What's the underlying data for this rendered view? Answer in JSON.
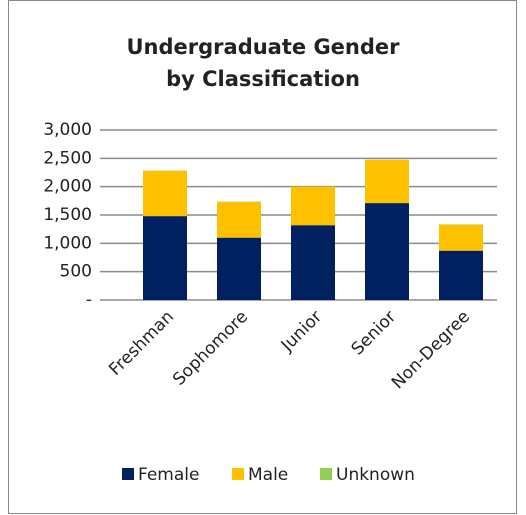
{
  "chart_data": {
    "type": "stacked_bar",
    "title": [
      "Undergraduate Gender",
      "by Classification"
    ],
    "categories": [
      "Freshman",
      "Sophomore",
      "Junior",
      "Senior",
      "Non-Degree"
    ],
    "series": [
      {
        "name": "Female",
        "color": "#002060",
        "values": [
          1480,
          1100,
          1320,
          1710,
          870
        ]
      },
      {
        "name": "Male",
        "color": "#ffc000",
        "values": [
          800,
          630,
          680,
          760,
          460
        ]
      },
      {
        "name": "Unknown",
        "color": "#92d050",
        "values": [
          5,
          5,
          5,
          5,
          5
        ]
      }
    ],
    "ylim": [
      0,
      3000
    ],
    "yticks": [
      {
        "value": 0,
        "label": "-"
      },
      500,
      {
        "value": 1000,
        "label": "1,000"
      },
      {
        "value": 1500,
        "label": "1,500"
      },
      {
        "value": 2000,
        "label": "2,000"
      },
      {
        "value": 2500,
        "label": "2,500"
      },
      {
        "value": 3000,
        "label": "3,000"
      }
    ],
    "grid": true,
    "legend": "bottom"
  }
}
